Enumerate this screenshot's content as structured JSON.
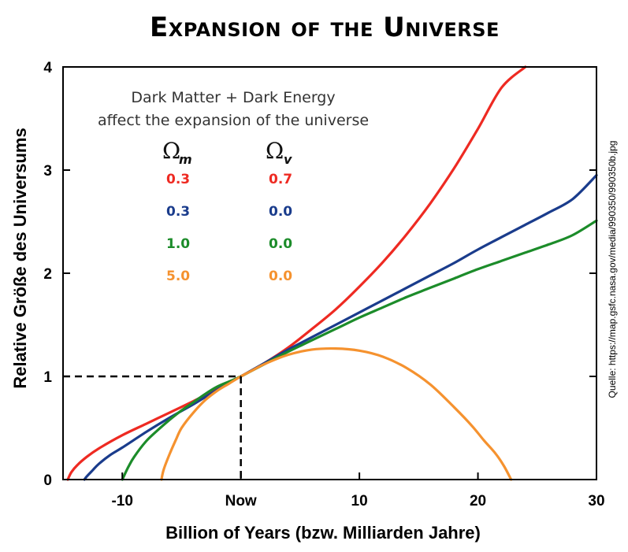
{
  "title": "Expansion of the Universe",
  "source": "Quelle: https://map.gsfc.nasa.gov/media/990350/990350b.jpg",
  "annotation": {
    "line1": "Dark Matter + Dark Energy",
    "line2": "affect the expansion of the universe",
    "omega_m_symbol": "Ω",
    "omega_m_sub": "m",
    "omega_v_symbol": "Ω",
    "omega_v_sub": "v"
  },
  "chart_data": {
    "type": "line",
    "xlabel": "Billion of Years (bzw. Milliarden Jahre)",
    "ylabel": "Relative Größe des Universums",
    "xlim": [
      -15,
      30
    ],
    "ylim": [
      0,
      4
    ],
    "x_ticks": [
      {
        "value": -10,
        "label": "-10"
      },
      {
        "value": 0,
        "label": "Now"
      },
      {
        "value": 10,
        "label": "10"
      },
      {
        "value": 20,
        "label": "20"
      },
      {
        "value": 30,
        "label": "30"
      }
    ],
    "y_ticks": [
      {
        "value": 0,
        "label": "0"
      },
      {
        "value": 1,
        "label": "1"
      },
      {
        "value": 2,
        "label": "2"
      },
      {
        "value": 3,
        "label": "3"
      },
      {
        "value": 4,
        "label": "4"
      }
    ],
    "reference_point": {
      "x": 0,
      "y": 1
    },
    "series": [
      {
        "omega_m": "0.3",
        "omega_v": "0.7",
        "color": "#ee2a22",
        "x": [
          -14.6,
          -14.3,
          -13.8,
          -13,
          -12,
          -10,
          -8,
          -6,
          -4,
          -2,
          0,
          2,
          4,
          6,
          8,
          10,
          12,
          14,
          16,
          18,
          20,
          22,
          24
        ],
        "y": [
          0,
          0.07,
          0.14,
          0.22,
          0.3,
          0.43,
          0.54,
          0.65,
          0.76,
          0.88,
          1.0,
          1.13,
          1.28,
          1.46,
          1.65,
          1.87,
          2.11,
          2.38,
          2.68,
          3.02,
          3.4,
          3.8,
          4.0
        ]
      },
      {
        "omega_m": "0.3",
        "omega_v": "0.0",
        "color": "#1a3c8c",
        "x": [
          -13.2,
          -13,
          -12.5,
          -12,
          -11,
          -10,
          -8,
          -6,
          -4,
          -2,
          0,
          2,
          4,
          6,
          8,
          10,
          12,
          14,
          16,
          18,
          20,
          22,
          24,
          26,
          28,
          30
        ],
        "y": [
          0,
          0.03,
          0.09,
          0.15,
          0.24,
          0.31,
          0.46,
          0.6,
          0.73,
          0.87,
          1.0,
          1.13,
          1.26,
          1.38,
          1.5,
          1.62,
          1.74,
          1.86,
          1.98,
          2.1,
          2.23,
          2.35,
          2.47,
          2.59,
          2.72,
          2.95
        ]
      },
      {
        "omega_m": "1.0",
        "omega_v": "0.0",
        "color": "#1c8c2a",
        "x": [
          -10,
          -9.5,
          -9,
          -8,
          -7,
          -6,
          -5,
          -4,
          -3,
          -2,
          -1,
          0,
          2,
          4,
          6,
          8,
          10,
          12,
          14,
          16,
          18,
          20,
          22,
          24,
          26,
          28,
          30
        ],
        "y": [
          0,
          0.12,
          0.22,
          0.37,
          0.48,
          0.58,
          0.67,
          0.75,
          0.83,
          0.9,
          0.95,
          1.0,
          1.12,
          1.24,
          1.35,
          1.46,
          1.57,
          1.67,
          1.77,
          1.86,
          1.95,
          2.04,
          2.12,
          2.2,
          2.28,
          2.37,
          2.51
        ]
      },
      {
        "omega_m": "5.0",
        "omega_v": "0.0",
        "color": "#f5922f",
        "x": [
          -6.7,
          -6.5,
          -6,
          -5.5,
          -5,
          -4,
          -3,
          -2,
          -1,
          0,
          1,
          2,
          4,
          6,
          8,
          10,
          12,
          14,
          16,
          18,
          19.5,
          20.5,
          21.5,
          22.2,
          22.8
        ],
        "y": [
          0,
          0.1,
          0.25,
          0.38,
          0.5,
          0.65,
          0.77,
          0.86,
          0.93,
          1.0,
          1.06,
          1.12,
          1.21,
          1.26,
          1.27,
          1.25,
          1.19,
          1.08,
          0.92,
          0.7,
          0.52,
          0.38,
          0.25,
          0.13,
          0
        ]
      }
    ],
    "grid": false,
    "legend": "top-left"
  }
}
